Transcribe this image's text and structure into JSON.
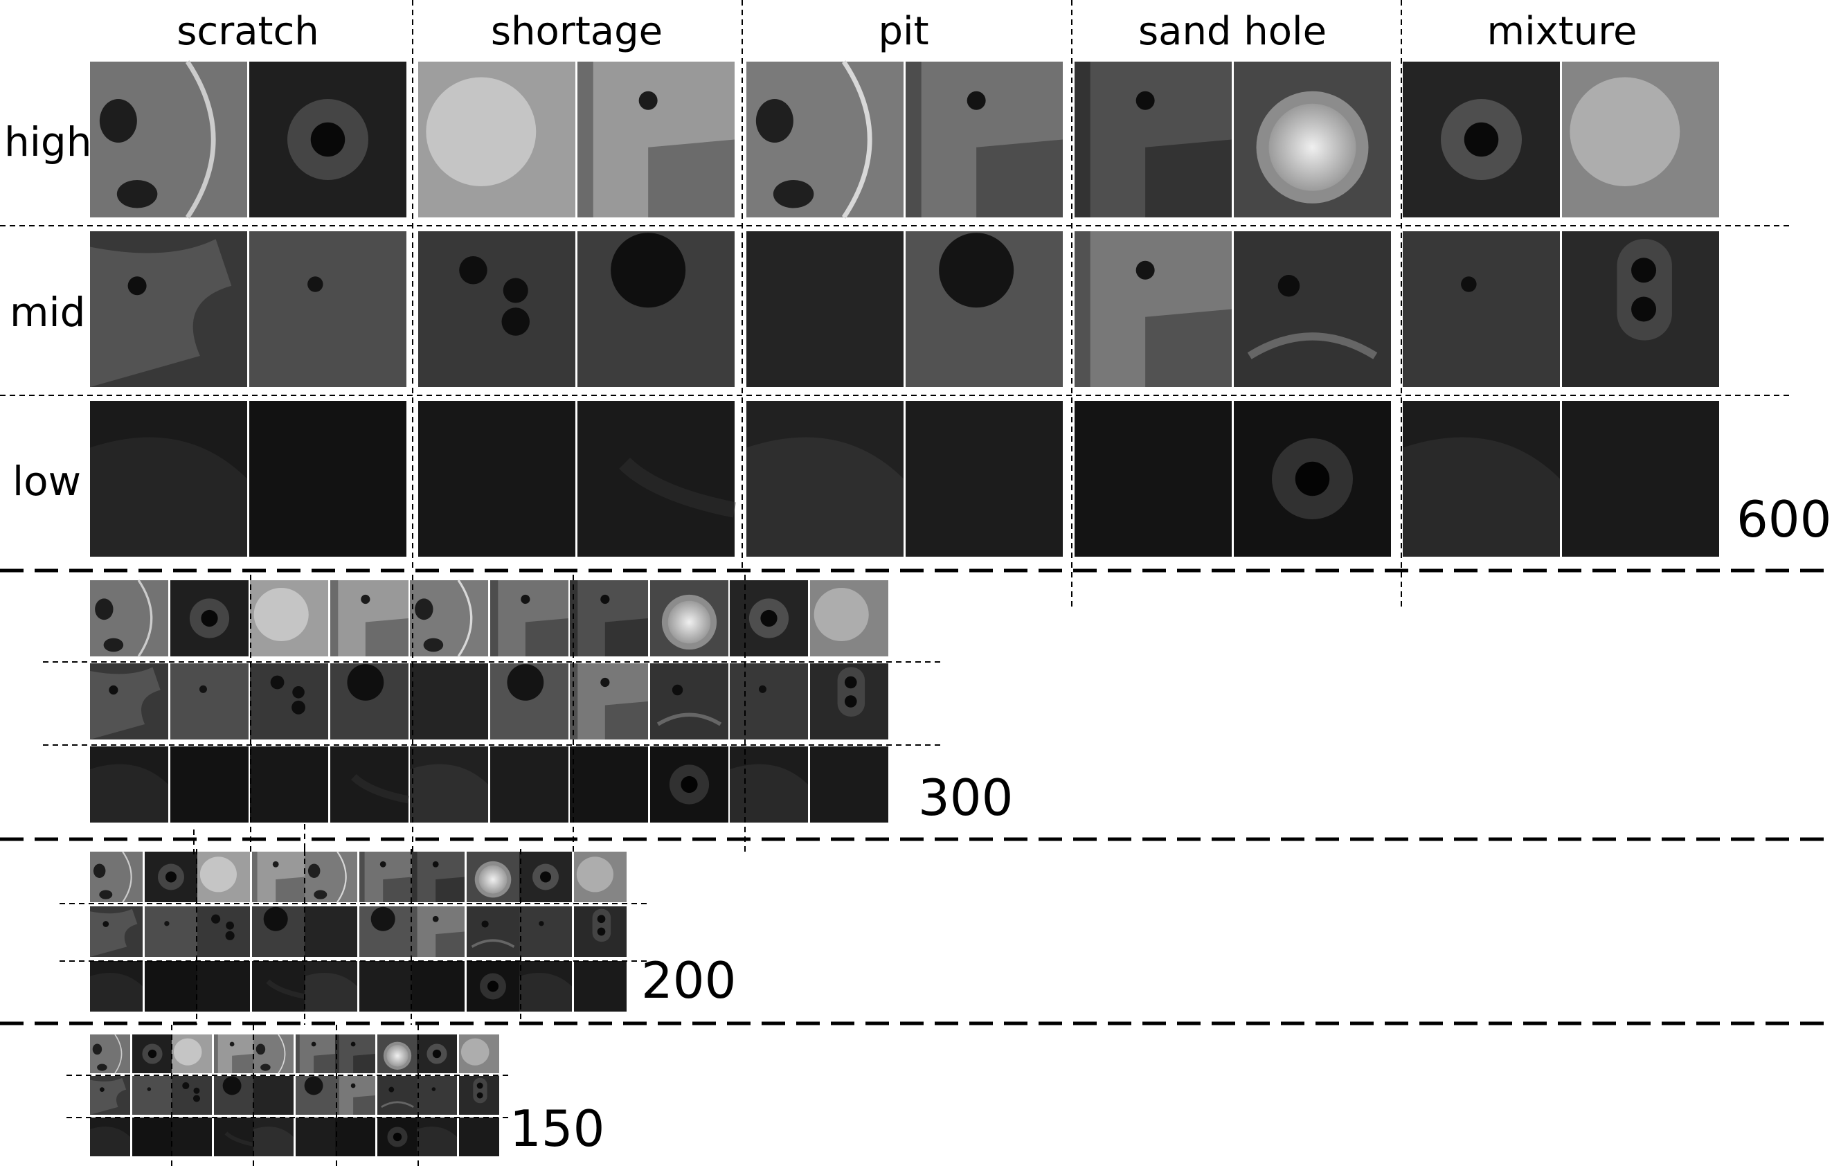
{
  "categories": [
    "scratch",
    "shortage",
    "pit",
    "sand hole",
    "mixture"
  ],
  "levels": [
    "high",
    "mid",
    "low"
  ],
  "resolutions": [
    "600",
    "300",
    "200",
    "150"
  ],
  "colors": {
    "background": "#ffffff",
    "text": "#000000",
    "divider": "#000000",
    "tile_edge": "#ffffff"
  },
  "tiles": [
    {
      "cat": 0,
      "lvl": 0,
      "img": [
        {
          "b": 0.45,
          "spot": "hole-left"
        },
        {
          "b": 0.12,
          "spot": "washer"
        }
      ]
    },
    {
      "cat": 0,
      "lvl": 1,
      "img": [
        {
          "b": 0.22,
          "spot": "plate-arms"
        },
        {
          "b": 0.3,
          "spot": "small-hole"
        }
      ]
    },
    {
      "cat": 0,
      "lvl": 2,
      "img": [
        {
          "b": 0.1,
          "spot": "dark-plate"
        },
        {
          "b": 0.07,
          "spot": "dark"
        }
      ]
    },
    {
      "cat": 1,
      "lvl": 0,
      "img": [
        {
          "b": 0.62,
          "spot": "bright"
        },
        {
          "b": 0.42,
          "spot": "plate-hole"
        }
      ]
    },
    {
      "cat": 1,
      "lvl": 1,
      "img": [
        {
          "b": 0.22,
          "spot": "three-holes"
        },
        {
          "b": 0.24,
          "spot": "big-hole"
        }
      ]
    },
    {
      "cat": 1,
      "lvl": 2,
      "img": [
        {
          "b": 0.09,
          "spot": "dark"
        },
        {
          "b": 0.1,
          "spot": "dark-texture"
        }
      ]
    },
    {
      "cat": 2,
      "lvl": 0,
      "img": [
        {
          "b": 0.48,
          "spot": "hole-left"
        },
        {
          "b": 0.3,
          "spot": "plate-hole"
        }
      ]
    },
    {
      "cat": 2,
      "lvl": 1,
      "img": [
        {
          "b": 0.14,
          "spot": "dark"
        },
        {
          "b": 0.32,
          "spot": "big-hole"
        }
      ]
    },
    {
      "cat": 2,
      "lvl": 2,
      "img": [
        {
          "b": 0.13,
          "spot": "dark-plate"
        },
        {
          "b": 0.11,
          "spot": "dark"
        }
      ]
    },
    {
      "cat": 3,
      "lvl": 0,
      "img": [
        {
          "b": 0.2,
          "spot": "plate-hole"
        },
        {
          "b": 0.28,
          "spot": "cup"
        }
      ]
    },
    {
      "cat": 3,
      "lvl": 1,
      "img": [
        {
          "b": 0.32,
          "spot": "plate-hole"
        },
        {
          "b": 0.2,
          "spot": "arc"
        }
      ]
    },
    {
      "cat": 3,
      "lvl": 2,
      "img": [
        {
          "b": 0.08,
          "spot": "dark"
        },
        {
          "b": 0.07,
          "spot": "washer"
        }
      ]
    },
    {
      "cat": 4,
      "lvl": 0,
      "img": [
        {
          "b": 0.14,
          "spot": "washer"
        },
        {
          "b": 0.52,
          "spot": "bright"
        }
      ]
    },
    {
      "cat": 4,
      "lvl": 1,
      "img": [
        {
          "b": 0.22,
          "spot": "small-hole"
        },
        {
          "b": 0.16,
          "spot": "two-holes"
        }
      ]
    },
    {
      "cat": 4,
      "lvl": 2,
      "img": [
        {
          "b": 0.11,
          "spot": "dark-plate"
        },
        {
          "b": 0.1,
          "spot": "dark"
        }
      ]
    }
  ]
}
